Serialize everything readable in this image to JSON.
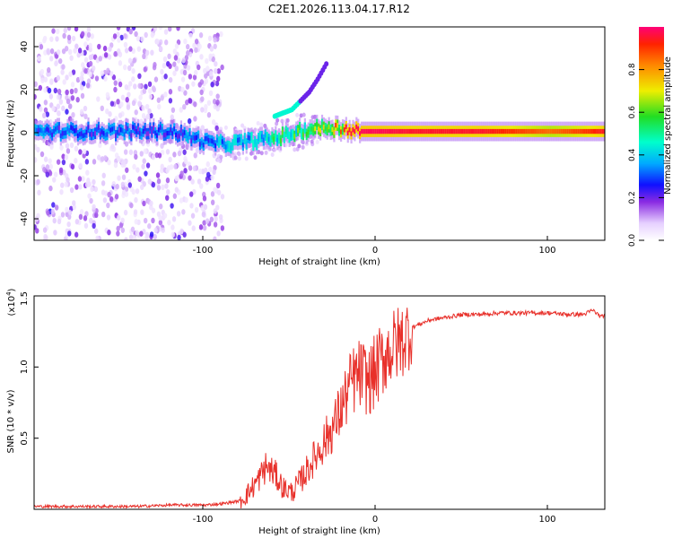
{
  "title": "C2E1.2026.113.04.17.R12",
  "spectrogram": {
    "xlabel": "Height of straight line (km)",
    "ylabel": "Frequency (Hz)",
    "xlim": [
      -200,
      132
    ],
    "ylim": [
      -50,
      48
    ],
    "xticks": [
      "-100",
      "0",
      "100"
    ],
    "yticks": [
      "40",
      "20",
      "0",
      "-20",
      "-40"
    ],
    "colorbar": {
      "label": "Normalized spectral amplitude",
      "range": [
        0,
        1
      ],
      "ticks": [
        "0.0",
        "0.2",
        "0.4",
        "0.6",
        "0.8"
      ]
    }
  },
  "chart_data": [
    {
      "type": "heatmap",
      "title": "C2E1.2026.113.04.17.R12",
      "xlabel": "Height of straight line (km)",
      "ylabel": "Frequency (Hz)",
      "xlim": [
        -200,
        132
      ],
      "ylim": [
        -50,
        48
      ],
      "colorbar_label": "Normalized spectral amplitude",
      "ridge": {
        "x": [
          -200,
          -180,
          -160,
          -140,
          -120,
          -100,
          -90,
          -80,
          -70,
          -60,
          -50,
          -40,
          -30,
          -20,
          -10,
          0,
          20,
          40,
          60,
          80,
          100,
          120,
          132
        ],
        "freq_hz": [
          0,
          0,
          0,
          0,
          0,
          -5,
          -6,
          -5,
          -4,
          -3,
          -1,
          1,
          2,
          1,
          0,
          0,
          0,
          0,
          0,
          0,
          0,
          0,
          0
        ],
        "amplitude": [
          0.35,
          0.3,
          0.3,
          0.3,
          0.3,
          0.35,
          0.4,
          0.45,
          0.5,
          0.55,
          0.6,
          0.7,
          0.85,
          0.95,
          0.98,
          0.98,
          0.95,
          0.95,
          0.95,
          0.9,
          0.85,
          0.9,
          0.95
        ]
      },
      "harmonic": {
        "x": [
          -60,
          -50,
          -40,
          -35,
          -30
        ],
        "freq_hz": [
          7,
          10,
          18,
          24,
          31
        ]
      }
    },
    {
      "type": "line",
      "xlabel": "Height of straight line (km)",
      "ylabel": "SNR (10 * v/v)",
      "multiplier": "(x10",
      "multiplier_exp": "4",
      "xlim": [
        -200,
        132
      ],
      "ylim": [
        0,
        1.5
      ],
      "xticks": [
        "-100",
        "0",
        "100"
      ],
      "yticks": [
        "0.5",
        "1.0",
        "1.5"
      ],
      "series": [
        {
          "name": "SNR",
          "color": "#e8302a",
          "x": [
            -200,
            -180,
            -160,
            -140,
            -120,
            -100,
            -90,
            -80,
            -75,
            -70,
            -65,
            -60,
            -55,
            -50,
            -45,
            -40,
            -35,
            -30,
            -25,
            -20,
            -15,
            -10,
            -5,
            0,
            5,
            10,
            15,
            20,
            30,
            40,
            50,
            60,
            70,
            80,
            90,
            100,
            110,
            120,
            125,
            130,
            132
          ],
          "values": [
            0.02,
            0.02,
            0.02,
            0.02,
            0.03,
            0.03,
            0.04,
            0.06,
            0.12,
            0.2,
            0.3,
            0.25,
            0.15,
            0.12,
            0.2,
            0.3,
            0.4,
            0.5,
            0.6,
            0.75,
            0.9,
            0.95,
            0.9,
            1.0,
            1.1,
            1.15,
            1.2,
            1.28,
            1.33,
            1.35,
            1.37,
            1.37,
            1.38,
            1.38,
            1.38,
            1.38,
            1.37,
            1.37,
            1.4,
            1.35,
            1.37
          ]
        }
      ]
    }
  ]
}
